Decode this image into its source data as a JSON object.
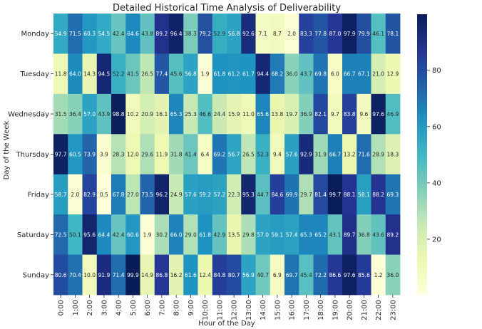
{
  "chart_data": {
    "type": "heatmap",
    "title": "Detailed Historical Time Analysis of Deliverability",
    "xlabel": "Hour of the Day",
    "ylabel": "Day of the Week",
    "x_categories": [
      "0:00",
      "1:00",
      "2:00",
      "3:00",
      "4:00",
      "5:00",
      "6:00",
      "7:00",
      "8:00",
      "9:00",
      "10:00",
      "11:00",
      "12:00",
      "13:00",
      "14:00",
      "15:00",
      "16:00",
      "17:00",
      "18:00",
      "19:00",
      "20:00",
      "21:00",
      "22:00",
      "23:00"
    ],
    "y_categories": [
      "Monday",
      "Tuesday",
      "Wednesday",
      "Thursday",
      "Friday",
      "Saturday",
      "Sunday"
    ],
    "values": [
      [
        54.9,
        71.5,
        60.3,
        54.5,
        42.4,
        64.6,
        43.8,
        89.2,
        96.4,
        38.3,
        79.2,
        52.9,
        56.8,
        92.6,
        7.1,
        8.7,
        2.0,
        83.3,
        77.8,
        87.0,
        97.9,
        79.9,
        46.1,
        78.1
      ],
      [
        11.8,
        64.0,
        14.3,
        94.5,
        52.2,
        41.5,
        26.5,
        77.4,
        45.6,
        56.8,
        1.9,
        61.8,
        61.2,
        61.7,
        94.4,
        68.2,
        36.0,
        43.7,
        69.8,
        6.0,
        66.7,
        67.1,
        21.0,
        12.9
      ],
      [
        31.5,
        36.4,
        57.0,
        43.9,
        98.8,
        10.2,
        20.9,
        16.1,
        65.3,
        25.3,
        46.6,
        24.4,
        15.9,
        11.0,
        65.6,
        13.8,
        19.7,
        36.9,
        82.1,
        9.7,
        83.8,
        9.6,
        97.6,
        46.9
      ],
      [
        97.7,
        60.5,
        73.9,
        3.9,
        28.3,
        12.0,
        29.6,
        11.9,
        31.8,
        41.4,
        6.4,
        69.2,
        56.7,
        26.5,
        52.3,
        9.4,
        57.6,
        92.9,
        31.9,
        66.7,
        13.2,
        71.6,
        28.9,
        18.3
      ],
      [
        58.7,
        2.0,
        82.9,
        0.5,
        67.8,
        27.0,
        73.5,
        96.2,
        24.9,
        57.6,
        59.2,
        57.2,
        22.3,
        95.3,
        44.7,
        84.6,
        69.9,
        29.7,
        81.4,
        99.7,
        88.1,
        58.1,
        88.2,
        69.3
      ],
      [
        72.5,
        50.1,
        95.6,
        64.4,
        42.4,
        60.6,
        1.9,
        30.2,
        66.0,
        29.0,
        61.8,
        42.9,
        13.5,
        29.8,
        57.0,
        59.1,
        57.4,
        65.3,
        65.2,
        43.1,
        89.7,
        36.8,
        43.6,
        89.2
      ],
      [
        80.6,
        70.4,
        10.0,
        91.9,
        71.4,
        99.9,
        14.9,
        86.8,
        16.2,
        61.6,
        12.4,
        84.8,
        80.7,
        56.9,
        40.7,
        6.9,
        69.7,
        45.4,
        72.2,
        86.6,
        97.6,
        85.6,
        1.2,
        36.0
      ]
    ],
    "colormap": "YlGnBu",
    "value_range": [
      0.5,
      99.9
    ],
    "colorbar_ticks": [
      20,
      40,
      60,
      80
    ],
    "annotated": true
  }
}
